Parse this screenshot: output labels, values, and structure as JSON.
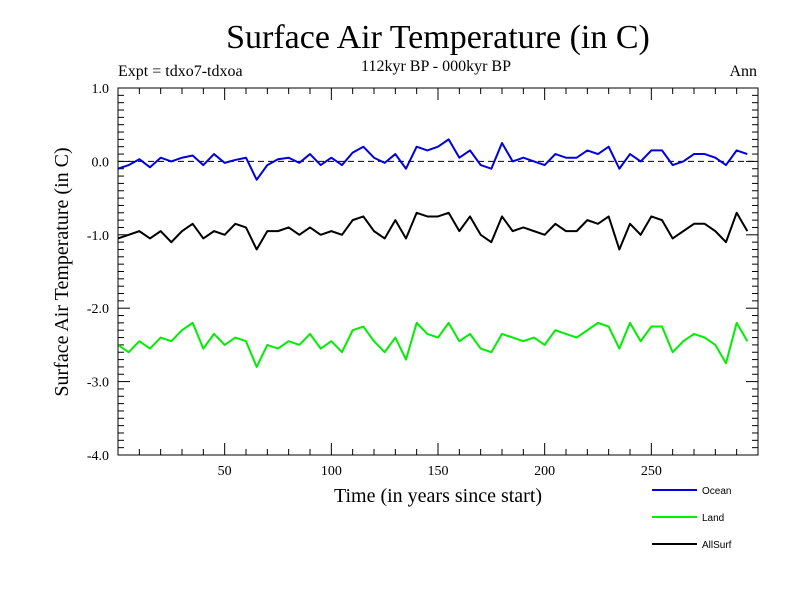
{
  "chart_data": {
    "type": "line",
    "title": "Surface Air Temperature (in C)",
    "subtitle": "112kyr BP - 000kyr BP",
    "left_label": "Expt = tdxo7-tdxoa",
    "right_label": "Ann",
    "xlabel": "Time (in years since start)",
    "ylabel": "Surface Air Temperature (in C)",
    "xlim": [
      0,
      300
    ],
    "ylim": [
      -4,
      1
    ],
    "x_ticks": [
      50,
      100,
      150,
      200,
      250
    ],
    "x_tick_labels": [
      "50",
      "100",
      "150",
      "200",
      "250"
    ],
    "y_ticks": [
      1,
      0,
      -1,
      -2,
      -3,
      -4
    ],
    "y_tick_labels": [
      "1.0",
      "0.0",
      "-1.0",
      "-2.0",
      "-3.0",
      "-4.0"
    ],
    "reference_line": 0,
    "x_step": 5,
    "series": [
      {
        "name": "Ocean",
        "color": "#0000dd",
        "values": [
          -0.1,
          -0.05,
          0.03,
          -0.08,
          0.05,
          0.0,
          0.05,
          0.08,
          -0.05,
          0.1,
          -0.02,
          0.02,
          0.05,
          -0.25,
          -0.05,
          0.03,
          0.05,
          -0.02,
          0.1,
          -0.05,
          0.05,
          -0.05,
          0.12,
          0.2,
          0.05,
          -0.02,
          0.1,
          -0.1,
          0.2,
          0.15,
          0.2,
          0.3,
          0.05,
          0.15,
          -0.05,
          -0.1,
          0.25,
          0.0,
          0.05,
          0.0,
          -0.05,
          0.1,
          0.05,
          0.05,
          0.15,
          0.1,
          0.2,
          -0.1,
          0.1,
          0.0,
          0.15,
          0.15,
          -0.05,
          0.0,
          0.1,
          0.1,
          0.05,
          -0.05,
          0.15,
          0.1
        ]
      },
      {
        "name": "AllSurf",
        "color": "#000000",
        "values": [
          -1.05,
          -1.0,
          -0.95,
          -1.05,
          -0.95,
          -1.1,
          -0.95,
          -0.85,
          -1.05,
          -0.95,
          -1.0,
          -0.85,
          -0.9,
          -1.2,
          -0.95,
          -0.95,
          -0.9,
          -1.0,
          -0.9,
          -1.0,
          -0.95,
          -1.0,
          -0.8,
          -0.75,
          -0.95,
          -1.05,
          -0.8,
          -1.05,
          -0.7,
          -0.75,
          -0.75,
          -0.7,
          -0.95,
          -0.75,
          -1.0,
          -1.1,
          -0.75,
          -0.95,
          -0.9,
          -0.95,
          -1.0,
          -0.85,
          -0.95,
          -0.95,
          -0.8,
          -0.85,
          -0.75,
          -1.2,
          -0.85,
          -1.0,
          -0.75,
          -0.8,
          -1.05,
          -0.95,
          -0.85,
          -0.85,
          -0.95,
          -1.1,
          -0.7,
          -0.95
        ]
      },
      {
        "name": "Land",
        "color": "#00ee00",
        "values": [
          -2.5,
          -2.6,
          -2.45,
          -2.55,
          -2.4,
          -2.45,
          -2.3,
          -2.2,
          -2.55,
          -2.35,
          -2.5,
          -2.4,
          -2.45,
          -2.8,
          -2.5,
          -2.55,
          -2.45,
          -2.5,
          -2.35,
          -2.55,
          -2.45,
          -2.6,
          -2.3,
          -2.25,
          -2.45,
          -2.6,
          -2.4,
          -2.7,
          -2.2,
          -2.35,
          -2.4,
          -2.2,
          -2.45,
          -2.35,
          -2.55,
          -2.6,
          -2.35,
          -2.4,
          -2.45,
          -2.4,
          -2.5,
          -2.3,
          -2.35,
          -2.4,
          -2.3,
          -2.2,
          -2.25,
          -2.55,
          -2.2,
          -2.45,
          -2.25,
          -2.25,
          -2.6,
          -2.45,
          -2.35,
          -2.4,
          -2.5,
          -2.75,
          -2.2,
          -2.45
        ]
      }
    ],
    "legend": {
      "placement": "bottom-right",
      "entries": [
        {
          "label": "Ocean",
          "color": "#0000dd"
        },
        {
          "label": "Land",
          "color": "#00ee00"
        },
        {
          "label": "AllSurf",
          "color": "#000000"
        }
      ]
    }
  }
}
